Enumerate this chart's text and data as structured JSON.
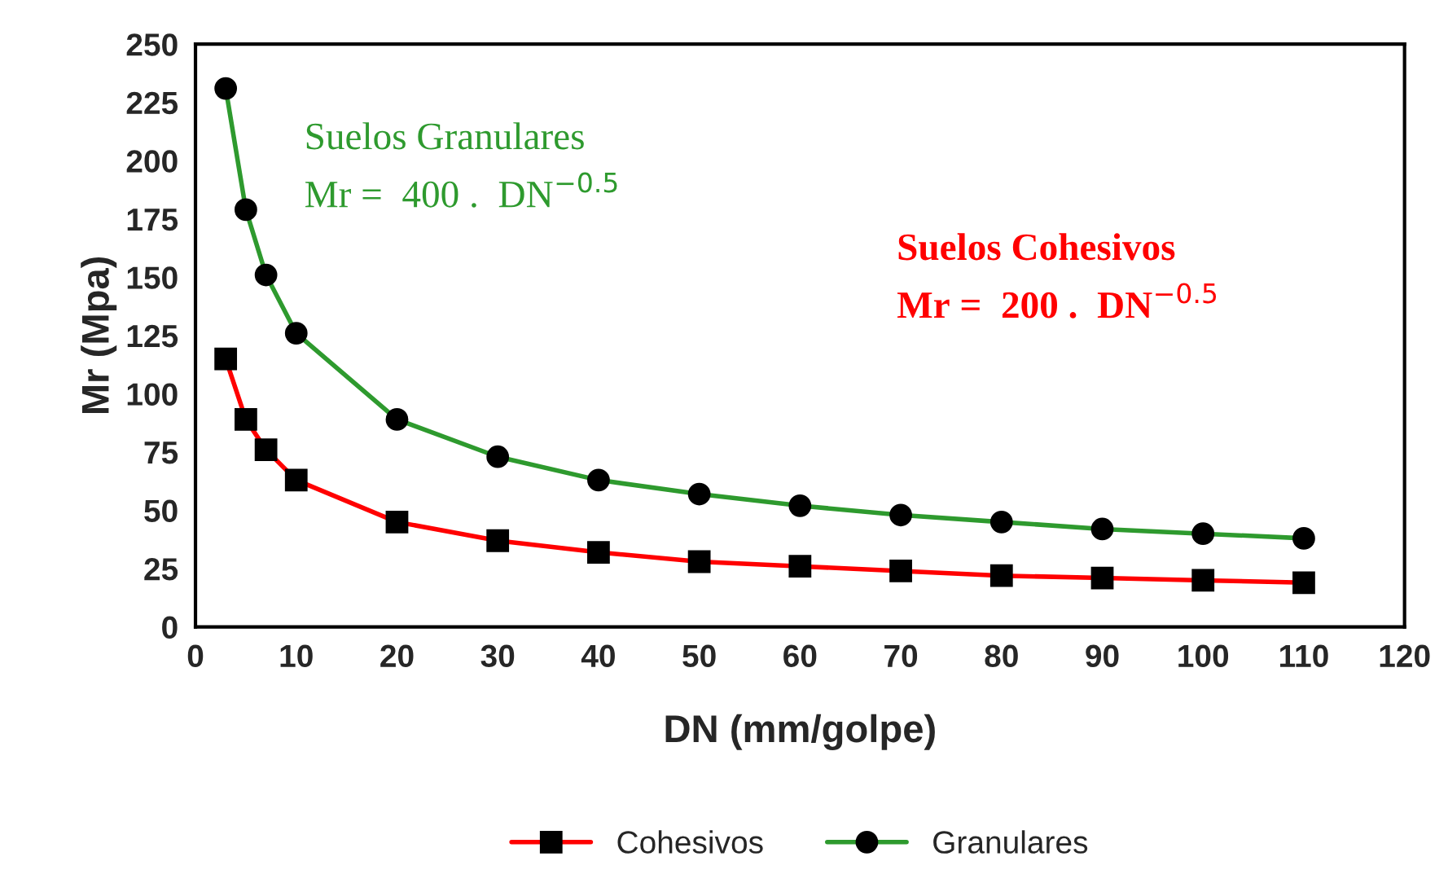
{
  "chart_data": {
    "type": "line",
    "xlabel": "DN (mm/golpe)",
    "ylabel": "Mr (Mpa)",
    "x": [
      3,
      5,
      7,
      10,
      20,
      30,
      40,
      50,
      60,
      70,
      80,
      90,
      100,
      110
    ],
    "series": [
      {
        "name": "Cohesivos",
        "color": "#ff0000",
        "marker": "square",
        "values": [
          115,
          89,
          76,
          63,
          45,
          37,
          32,
          28,
          26,
          24,
          22,
          21,
          20,
          19
        ]
      },
      {
        "name": "Granulares",
        "color": "#2e9a2e",
        "marker": "circle",
        "values": [
          231,
          179,
          151,
          126,
          89,
          73,
          63,
          57,
          52,
          48,
          45,
          42,
          40,
          38
        ]
      }
    ],
    "annotations": [
      "Suelos Granulares",
      "Mr =  400 .  DN$^{−0.5}$",
      "Suelos Cohesivos",
      "Mr =  200 .  DN$^{−0.5}$"
    ],
    "xlim": [
      0,
      120
    ],
    "xticks": [
      0,
      10,
      20,
      30,
      40,
      50,
      60,
      70,
      80,
      90,
      100,
      110,
      120
    ],
    "ylim": [
      0,
      250
    ],
    "yticks": [
      0,
      25,
      50,
      75,
      100,
      125,
      150,
      175,
      200,
      225,
      250
    ],
    "grid": false,
    "legend": "bottom",
    "line_style": "solid"
  }
}
